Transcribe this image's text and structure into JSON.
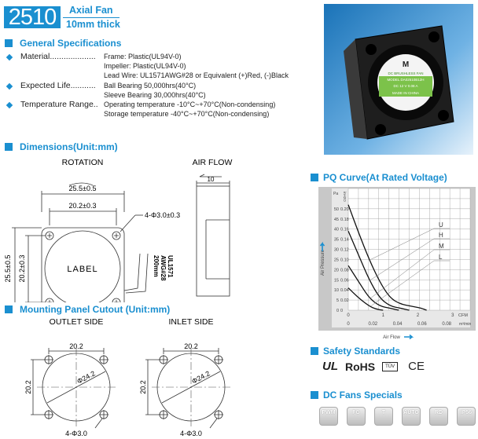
{
  "header": {
    "model": "2510",
    "type": "Axial Fan",
    "thickness": "10mm thick"
  },
  "general": {
    "title": "General Specifications",
    "rows": [
      {
        "label": "Material....................",
        "values": [
          "Frame: Plastic(UL94V-0)",
          "Impeller: Plastic(UL94V-0)",
          "Lead Wire: UL1571AWG#28 or Equivalent (+)Red, (-)Black"
        ]
      },
      {
        "label": "Expected Life...........",
        "values": [
          "Ball Bearing 50,000hrs(40°C)",
          "Sleeve Bearing 30,000hrs(40°C)"
        ]
      },
      {
        "label": "Temperature Range..",
        "values": [
          "Operating temperature  -10°C~+70°C(Non-condensing)",
          "Storage temperature  -40°C~+70°C(Non-condensing)"
        ]
      }
    ]
  },
  "photo": {
    "label_lines": [
      "DC BRUSHLESS FAN",
      "MODEL DA02510B12H",
      "DC 12 V 0.08 A",
      "MADE IN CHINA"
    ],
    "brand": "M"
  },
  "dimensions": {
    "title": "Dimensions(Unit:mm)",
    "rotation": "ROTATION",
    "airflow": "AIR FLOW",
    "outer_w": "25.5±0.5",
    "inner_w": "20.2±0.3",
    "holes": "4-Φ3.0±0.3",
    "outer_h": "25.5±0.5",
    "inner_h": "20.2±0.3",
    "label": "LABEL",
    "wire": [
      "UL1571",
      "AWG#28",
      "200mm"
    ],
    "thickness": "10"
  },
  "mounting": {
    "title": "Mounting Panel Cutout (Unit:mm)",
    "sides": [
      {
        "name": "OUTLET SIDE",
        "width": "20.2",
        "height": "20.2",
        "dia": "Φ24.2",
        "holes": "4-Φ3.0"
      },
      {
        "name": "INLET SIDE",
        "width": "20.2",
        "height": "20.2",
        "dia": "Φ24.2",
        "holes": "4-Φ3.0"
      }
    ]
  },
  "pq": {
    "title": "PQ Curve(At Rated Voltage)"
  },
  "chart_data": {
    "type": "line",
    "title": "PQ Curve(At Rated Voltage)",
    "xlabel": "Air Flow",
    "ylabel": "Air Pressure",
    "x_units": [
      "CFM",
      "m³/min"
    ],
    "y_units": [
      "Pa",
      "inH2O"
    ],
    "x_ticks_cfm": [
      "0",
      "1",
      "2",
      "3"
    ],
    "x_ticks_m3": [
      "0",
      "0.02",
      "0.04",
      "0.06",
      "0.08"
    ],
    "y_ticks_pa": [
      "0",
      "5",
      "10",
      "15",
      "20",
      "25",
      "30",
      "35",
      "40",
      "45",
      "50"
    ],
    "y_ticks_inh2o": [
      "0",
      "0.02",
      "0.04",
      "0.06",
      "0.08",
      "0.10",
      "0.12",
      "0.14",
      "0.16",
      "0.18",
      "0.20"
    ],
    "xlim": [
      0,
      3.5
    ],
    "ylim": [
      0,
      60
    ],
    "grid": true,
    "series": [
      {
        "name": "U",
        "points": [
          [
            0,
            52
          ],
          [
            0.3,
            38
          ],
          [
            0.6,
            25
          ],
          [
            0.9,
            14
          ],
          [
            1.2,
            6
          ],
          [
            1.5,
            3
          ],
          [
            1.8,
            2
          ],
          [
            2.1,
            1
          ],
          [
            2.25,
            0
          ]
        ]
      },
      {
        "name": "H",
        "points": [
          [
            0,
            39
          ],
          [
            0.3,
            27
          ],
          [
            0.6,
            15
          ],
          [
            0.9,
            6
          ],
          [
            1.2,
            2
          ],
          [
            1.5,
            1
          ],
          [
            1.75,
            0
          ]
        ]
      },
      {
        "name": "M",
        "points": [
          [
            0,
            22
          ],
          [
            0.3,
            14
          ],
          [
            0.6,
            6
          ],
          [
            0.9,
            2
          ],
          [
            1.2,
            1
          ],
          [
            1.45,
            0
          ]
        ]
      },
      {
        "name": "L",
        "points": [
          [
            0,
            11
          ],
          [
            0.3,
            6
          ],
          [
            0.6,
            2
          ],
          [
            0.8,
            0.5
          ],
          [
            1.0,
            0
          ]
        ]
      }
    ]
  },
  "safety": {
    "title": "Safety Standards",
    "marks": [
      "UL",
      "RoHS",
      "TÜV",
      "CE"
    ]
  },
  "specials": {
    "title": "DC Fans Specials",
    "items": [
      "PWM",
      "FG",
      "T",
      "AUTO",
      "RD",
      "IP56"
    ]
  },
  "colors": {
    "accent": "#1a8fd0"
  }
}
